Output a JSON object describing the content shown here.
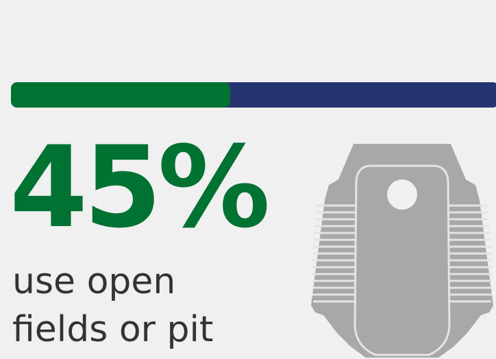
{
  "progress": {
    "value_percent": 45,
    "fill_color": "#007232",
    "track_color": "#263570"
  },
  "stat": {
    "value": "45%",
    "color": "#007232"
  },
  "caption": {
    "line1": "use open",
    "line2": "fields or pit"
  },
  "illustration": {
    "icon": "squat-toilet-icon",
    "color": "#a8a8a8"
  }
}
